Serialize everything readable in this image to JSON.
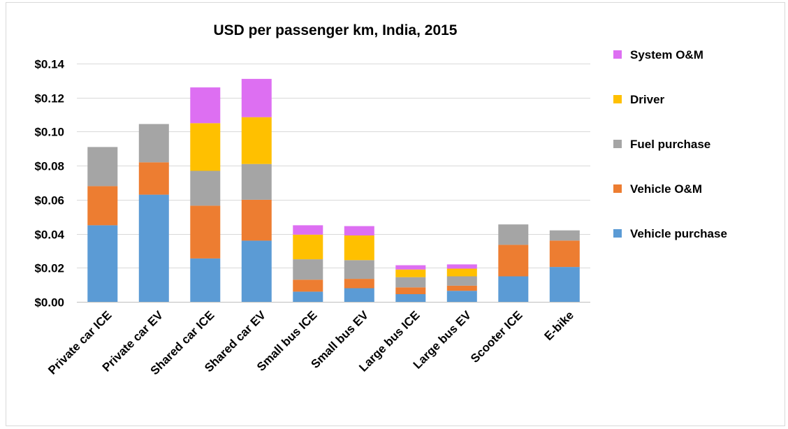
{
  "chart_data": {
    "type": "bar",
    "stacked": true,
    "title": "USD per passenger km, India, 2015",
    "xlabel": "",
    "ylabel": "",
    "ylim": [
      0,
      0.14
    ],
    "yticks": [
      0,
      0.02,
      0.04,
      0.06,
      0.08,
      0.1,
      0.12,
      0.14
    ],
    "ytick_labels": [
      "$0.00",
      "$0.02",
      "$0.04",
      "$0.06",
      "$0.08",
      "$0.10",
      "$0.12",
      "$0.14"
    ],
    "grid": true,
    "legend_position": "right",
    "categories": [
      "Private car ICE",
      "Private car EV",
      "Shared car ICE",
      "Shared car EV",
      "Small bus ICE",
      "Small bus EV",
      "Large bus ICE",
      "Large bus EV",
      "Scooter ICE",
      "E-bike"
    ],
    "series": [
      {
        "name": "Vehicle purchase",
        "color": "#5b9bd5",
        "values": [
          0.045,
          0.063,
          0.0255,
          0.036,
          0.006,
          0.008,
          0.0045,
          0.0065,
          0.015,
          0.0205
        ]
      },
      {
        "name": "Vehicle O&M",
        "color": "#ed7d31",
        "values": [
          0.023,
          0.019,
          0.031,
          0.024,
          0.007,
          0.0055,
          0.004,
          0.003,
          0.0185,
          0.0155
        ]
      },
      {
        "name": "Fuel purchase",
        "color": "#a5a5a5",
        "values": [
          0.023,
          0.0225,
          0.0205,
          0.021,
          0.012,
          0.011,
          0.006,
          0.0055,
          0.012,
          0.006
        ]
      },
      {
        "name": "Driver",
        "color": "#ffc000",
        "values": [
          0,
          0,
          0.028,
          0.0275,
          0.0145,
          0.0145,
          0.0045,
          0.0045,
          0,
          0
        ]
      },
      {
        "name": "System O&M",
        "color": "#dd6ff2",
        "values": [
          0,
          0,
          0.021,
          0.0225,
          0.0055,
          0.0055,
          0.0025,
          0.0025,
          0,
          0
        ]
      }
    ],
    "legend_order": [
      "System O&M",
      "Driver",
      "Fuel purchase",
      "Vehicle O&M",
      "Vehicle purchase"
    ]
  }
}
